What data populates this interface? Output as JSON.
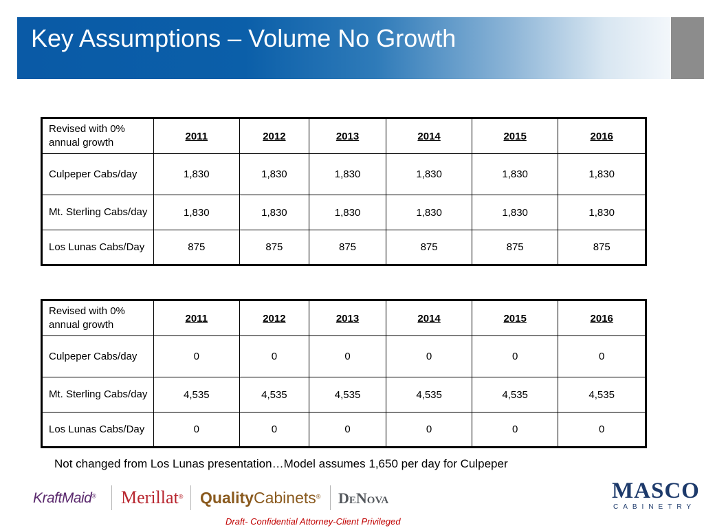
{
  "slide": {
    "title": "Key Assumptions – Volume No Growth",
    "note": "Not changed from Los Lunas presentation…Model assumes 1,650 per day for Culpeper",
    "footer": "Draft- Confidential  Attorney-Client Privileged"
  },
  "table1": {
    "header": [
      "Revised with 0% annual growth",
      "2011",
      "2012",
      "2013",
      "2014",
      "2015",
      "2016"
    ],
    "rows": [
      [
        "Culpeper Cabs/day",
        "1,830",
        "1,830",
        "1,830",
        "1,830",
        "1,830",
        "1,830"
      ],
      [
        "Mt. Sterling Cabs/day",
        "1,830",
        "1,830",
        "1,830",
        "1,830",
        "1,830",
        "1,830"
      ],
      [
        "Los Lunas Cabs/Day",
        "875",
        "875",
        "875",
        "875",
        "875",
        "875"
      ]
    ]
  },
  "table2": {
    "header": [
      "Revised with 0% annual growth",
      "2011",
      "2012",
      "2013",
      "2014",
      "2015",
      "2016"
    ],
    "rows": [
      [
        "Culpeper Cabs/day",
        "0",
        "0",
        "0",
        "0",
        "0",
        "0"
      ],
      [
        "Mt. Sterling Cabs/day",
        "4,535",
        "4,535",
        "4,535",
        "4,535",
        "4,535",
        "4,535"
      ],
      [
        "Los Lunas Cabs/Day",
        "0",
        "0",
        "0",
        "0",
        "0",
        "0"
      ]
    ]
  },
  "logos": {
    "kraftmaid": "KraftMaid",
    "kraftmaid_mark": "®",
    "merillat": "Merillat",
    "merillat_mark": "®",
    "quality": "Quality",
    "cabinets": "Cabinets",
    "cabinets_mark": "®",
    "denova": "DeNova",
    "masco": "MASCO",
    "cabinetry": "CABINETRY"
  },
  "colors": {
    "title_blue": "#0a5aa6",
    "footer_red": "#c00000",
    "kraftmaid_purple": "#5b2a6e",
    "merillat_red": "#b8262f",
    "quality_brown": "#8a5a1e",
    "denova_gray": "#55595e",
    "masco_navy": "#1d3a6b"
  }
}
